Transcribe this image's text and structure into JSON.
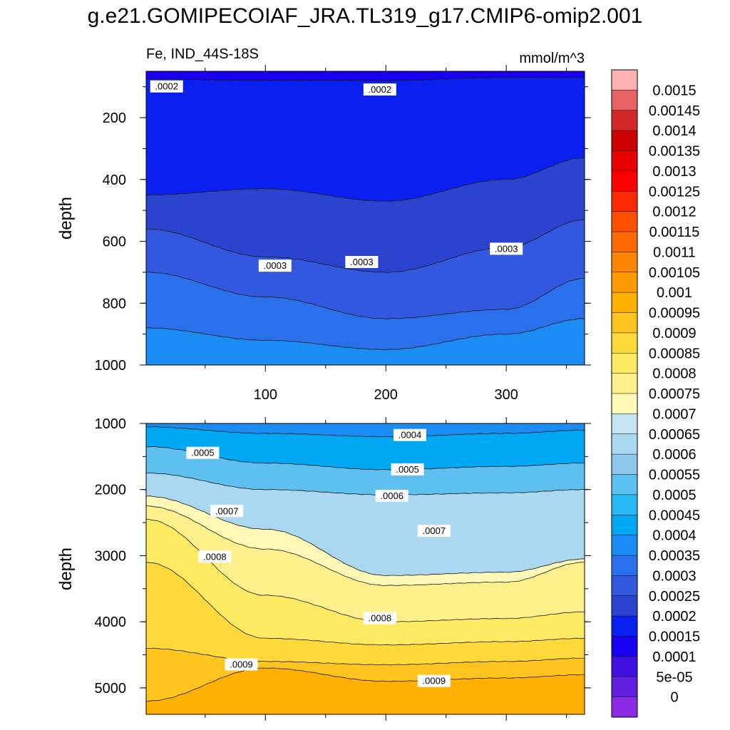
{
  "page": {
    "title": "g.e21.GOMIPECOIAF_JRA.TL319_g17.CMIP6-omip2.001"
  },
  "chart_data": [
    {
      "type": "contour",
      "panel": "upper",
      "left_title": "Fe, IND_44S-18S",
      "right_title": "mmol/m^3",
      "xlabel": "",
      "ylabel": "depth",
      "xlim": [
        1,
        365
      ],
      "ylim": [
        1000,
        50
      ],
      "x_ticks": [
        100,
        200,
        300
      ],
      "y_ticks": [
        200,
        400,
        600,
        800,
        1000
      ],
      "contour_lines": [
        {
          "level": 0.00015,
          "depth_profile": {
            "x": [
              1,
              100,
              200,
              300,
              365
            ],
            "depth": [
              75,
              80,
              80,
              70,
              70
            ]
          }
        },
        {
          "level": 0.0002,
          "depth_profile": {
            "x": [
              1,
              100,
              200,
              300,
              365
            ],
            "depth": [
              450,
              430,
              470,
              400,
              330
            ]
          }
        },
        {
          "level": 0.00025,
          "depth_profile": {
            "x": [
              1,
              100,
              200,
              300,
              365
            ],
            "depth": [
              560,
              650,
              700,
              620,
              530
            ]
          }
        },
        {
          "level": 0.0003,
          "depth_profile": {
            "x": [
              1,
              100,
              200,
              300,
              365
            ],
            "depth": [
              700,
              780,
              850,
              820,
              720
            ]
          }
        },
        {
          "level": 0.00035,
          "depth_profile": {
            "x": [
              1,
              100,
              200,
              300,
              365
            ],
            "depth": [
              880,
              920,
              950,
              900,
              850
            ]
          }
        }
      ],
      "contour_labels": [
        {
          "text": ".0002",
          "x": 18,
          "depth": 100
        },
        {
          "text": ".0002",
          "x": 195,
          "depth": 110
        },
        {
          "text": ".0003",
          "x": 108,
          "depth": 680
        },
        {
          "text": ".0003",
          "x": 180,
          "depth": 668
        },
        {
          "text": ".0003",
          "x": 300,
          "depth": 625
        }
      ]
    },
    {
      "type": "contour",
      "panel": "lower",
      "xlabel": "",
      "ylabel": "depth",
      "xlim": [
        1,
        365
      ],
      "ylim": [
        5400,
        1000
      ],
      "x_ticks": [
        100,
        200,
        300
      ],
      "y_ticks": [
        1000,
        2000,
        3000,
        4000,
        5000
      ],
      "contour_lines": [
        {
          "level": 0.0004,
          "depth_profile": {
            "x": [
              1,
              100,
              200,
              300,
              365
            ],
            "depth": [
              1050,
              1150,
              1200,
              1150,
              1100
            ]
          }
        },
        {
          "level": 0.0005,
          "depth_profile": {
            "x": [
              1,
              100,
              200,
              300,
              365
            ],
            "depth": [
              1350,
              1600,
              1700,
              1650,
              1600
            ]
          }
        },
        {
          "level": 0.0006,
          "depth_profile": {
            "x": [
              1,
              100,
              200,
              300,
              365
            ],
            "depth": [
              1750,
              2000,
              2080,
              2050,
              2000
            ]
          }
        },
        {
          "level": 0.0007,
          "depth_profile": {
            "x": [
              1,
              100,
              200,
              300,
              365
            ],
            "depth": [
              2100,
              2600,
              3300,
              3250,
              3050
            ]
          }
        },
        {
          "level": 0.00075,
          "depth_profile": {
            "x": [
              1,
              100,
              200,
              300,
              365
            ],
            "depth": [
              2250,
              2900,
              3450,
              3400,
              3100
            ]
          }
        },
        {
          "level": 0.0008,
          "depth_profile": {
            "x": [
              1,
              100,
              200,
              300,
              365
            ],
            "depth": [
              2450,
              3600,
              4000,
              3950,
              3850
            ]
          }
        },
        {
          "level": 0.00085,
          "depth_profile": {
            "x": [
              1,
              100,
              200,
              300,
              365
            ],
            "depth": [
              3100,
              4250,
              4350,
              4300,
              4250
            ]
          }
        },
        {
          "level": 0.0009,
          "depth_profile": {
            "x": [
              1,
              100,
              200,
              300,
              365
            ],
            "depth": [
              4400,
              4600,
              4650,
              4600,
              4550
            ]
          }
        },
        {
          "level": 0.00095,
          "depth_profile": {
            "x": [
              1,
              100,
              200,
              300,
              365
            ],
            "depth": [
              5200,
              4700,
              4900,
              4850,
              4800
            ]
          }
        }
      ],
      "contour_labels": [
        {
          "text": ".0004",
          "x": 220,
          "depth": 1180
        },
        {
          "text": ".0005",
          "x": 48,
          "depth": 1450
        },
        {
          "text": ".0005",
          "x": 218,
          "depth": 1700
        },
        {
          "text": ".0006",
          "x": 205,
          "depth": 2100
        },
        {
          "text": ".0007",
          "x": 68,
          "depth": 2330
        },
        {
          "text": ".0007",
          "x": 240,
          "depth": 2630
        },
        {
          "text": ".0008",
          "x": 58,
          "depth": 3020
        },
        {
          "text": ".0008",
          "x": 195,
          "depth": 3950
        },
        {
          "text": ".0009",
          "x": 80,
          "depth": 4650
        },
        {
          "text": ".0009",
          "x": 240,
          "depth": 4900
        }
      ]
    }
  ],
  "colorbar": {
    "labels": [
      "0.0015",
      "0.00145",
      "0.0014",
      "0.00135",
      "0.0013",
      "0.00125",
      "0.0012",
      "0.00115",
      "0.0011",
      "0.00105",
      "0.001",
      "0.00095",
      "0.0009",
      "0.00085",
      "0.0008",
      "0.00075",
      "0.0007",
      "0.00065",
      "0.0006",
      "0.00055",
      "0.0005",
      "0.00045",
      "0.0004",
      "0.00035",
      "0.0003",
      "0.00025",
      "0.0002",
      "0.00015",
      "0.0001",
      "5e-05",
      "0"
    ],
    "colors": [
      "#ffb3b3",
      "#e86464",
      "#d42828",
      "#cc0000",
      "#e60000",
      "#ff0000",
      "#ff2a00",
      "#ff5000",
      "#ff6a00",
      "#ff8400",
      "#ff9a00",
      "#ffb000",
      "#ffc41e",
      "#ffd83a",
      "#ffea62",
      "#fff08c",
      "#fff9b8",
      "#c4e4f4",
      "#aad8f0",
      "#90c8ec",
      "#5ec0f0",
      "#28baf4",
      "#00a8f4",
      "#1a8cf4",
      "#2a70ec",
      "#3258e0",
      "#2a44d0",
      "#0a20f0",
      "#1a00f0",
      "#4010e0",
      "#6020e0",
      "#8c2be6"
    ]
  }
}
